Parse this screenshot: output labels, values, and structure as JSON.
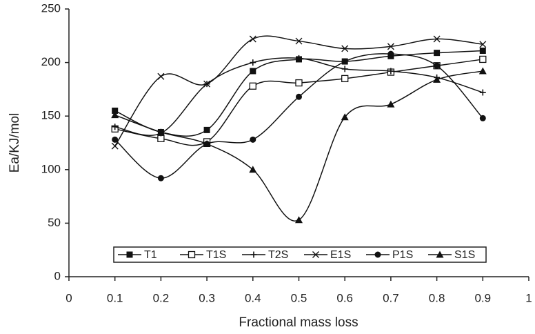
{
  "chart_data": {
    "type": "line",
    "xlabel": "Fractional mass loss",
    "ylabel": "Ea/KJ/mol",
    "x": [
      0.1,
      0.2,
      0.3,
      0.4,
      0.5,
      0.6,
      0.7,
      0.8,
      0.9
    ],
    "series": [
      {
        "name": "T1",
        "color": "#111111",
        "marker": "square",
        "values": [
          155,
          135,
          137,
          192,
          203,
          201,
          206,
          209,
          211
        ]
      },
      {
        "name": "T1S",
        "color": "#111111",
        "marker": "open-square",
        "values": [
          138,
          129,
          126,
          178,
          181,
          185,
          191,
          197,
          203
        ]
      },
      {
        "name": "T2S",
        "color": "#111111",
        "marker": "plus",
        "values": [
          140,
          134,
          180,
          200,
          204,
          194,
          192,
          186,
          172
        ]
      },
      {
        "name": "E1S",
        "color": "#111111",
        "marker": "cross",
        "values": [
          122,
          187,
          180,
          222,
          220,
          213,
          215,
          222,
          217
        ]
      },
      {
        "name": "P1S",
        "color": "#111111",
        "marker": "circle",
        "values": [
          128,
          92,
          124,
          128,
          168,
          201,
          208,
          197,
          148
        ]
      },
      {
        "name": "S1S",
        "color": "#111111",
        "marker": "triangle",
        "values": [
          151,
          135,
          124,
          100,
          53,
          149,
          161,
          184,
          192
        ]
      }
    ],
    "xlim": [
      0,
      1
    ],
    "xticks": [
      0,
      0.1,
      0.2,
      0.3,
      0.4,
      0.5,
      0.6,
      0.7,
      0.8,
      0.9,
      1
    ],
    "ylim": [
      0,
      250
    ],
    "yticks": [
      0,
      50,
      100,
      150,
      200,
      250
    ],
    "grid": false,
    "legend": "bottom"
  }
}
